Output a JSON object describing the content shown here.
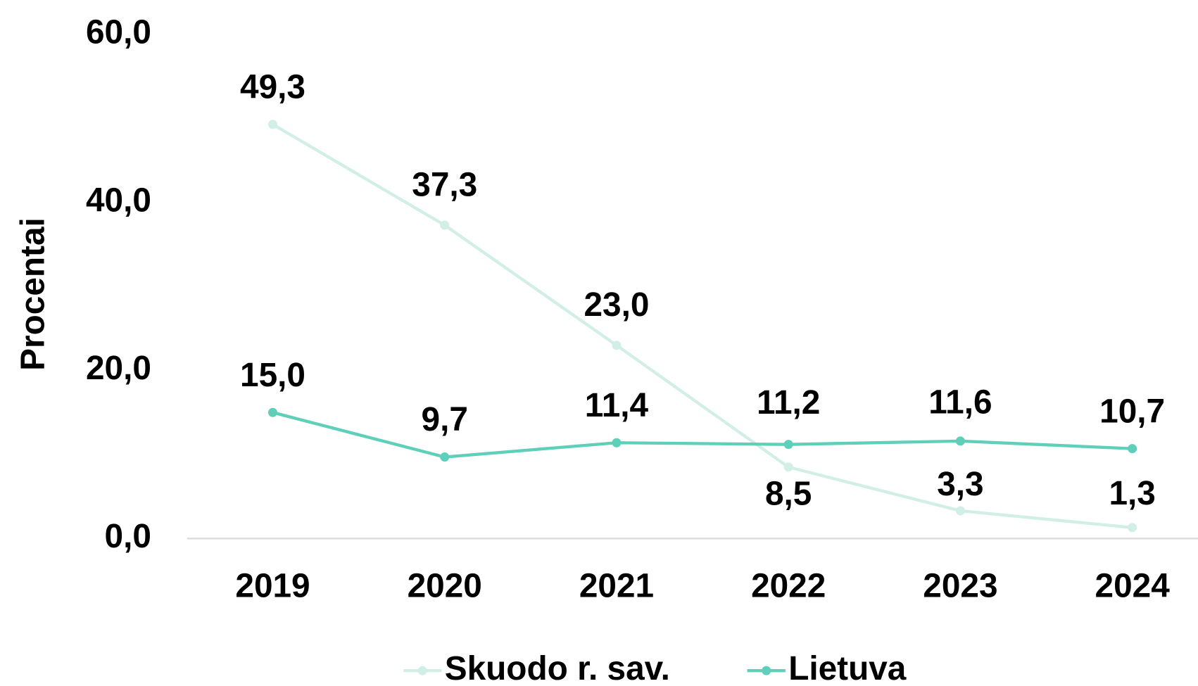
{
  "chart_data": {
    "type": "line",
    "y_label": "Procentai",
    "categories": [
      "2019",
      "2020",
      "2021",
      "2022",
      "2023",
      "2024"
    ],
    "series": [
      {
        "name": "Skuodo r. sav.",
        "color": "#d2efe7",
        "values": [
          49.3,
          37.3,
          23.0,
          8.5,
          3.3,
          1.3
        ],
        "value_labels": [
          "49,3",
          "37,3",
          "23,0",
          "8,5",
          "3,3",
          "1,3"
        ]
      },
      {
        "name": "Lietuva",
        "color": "#5ecfb8",
        "values": [
          15.0,
          9.7,
          11.4,
          11.2,
          11.6,
          10.7
        ],
        "value_labels": [
          "15,0",
          "9,7",
          "11,4",
          "11,2",
          "11,6",
          "10,7"
        ]
      }
    ],
    "ylim": [
      0,
      60
    ],
    "yticks": [
      {
        "value": 0,
        "label": "0,0"
      },
      {
        "value": 20,
        "label": "20,0"
      },
      {
        "value": 40,
        "label": "40,0"
      },
      {
        "value": 60,
        "label": "60,0"
      }
    ],
    "legend": "bottom"
  }
}
